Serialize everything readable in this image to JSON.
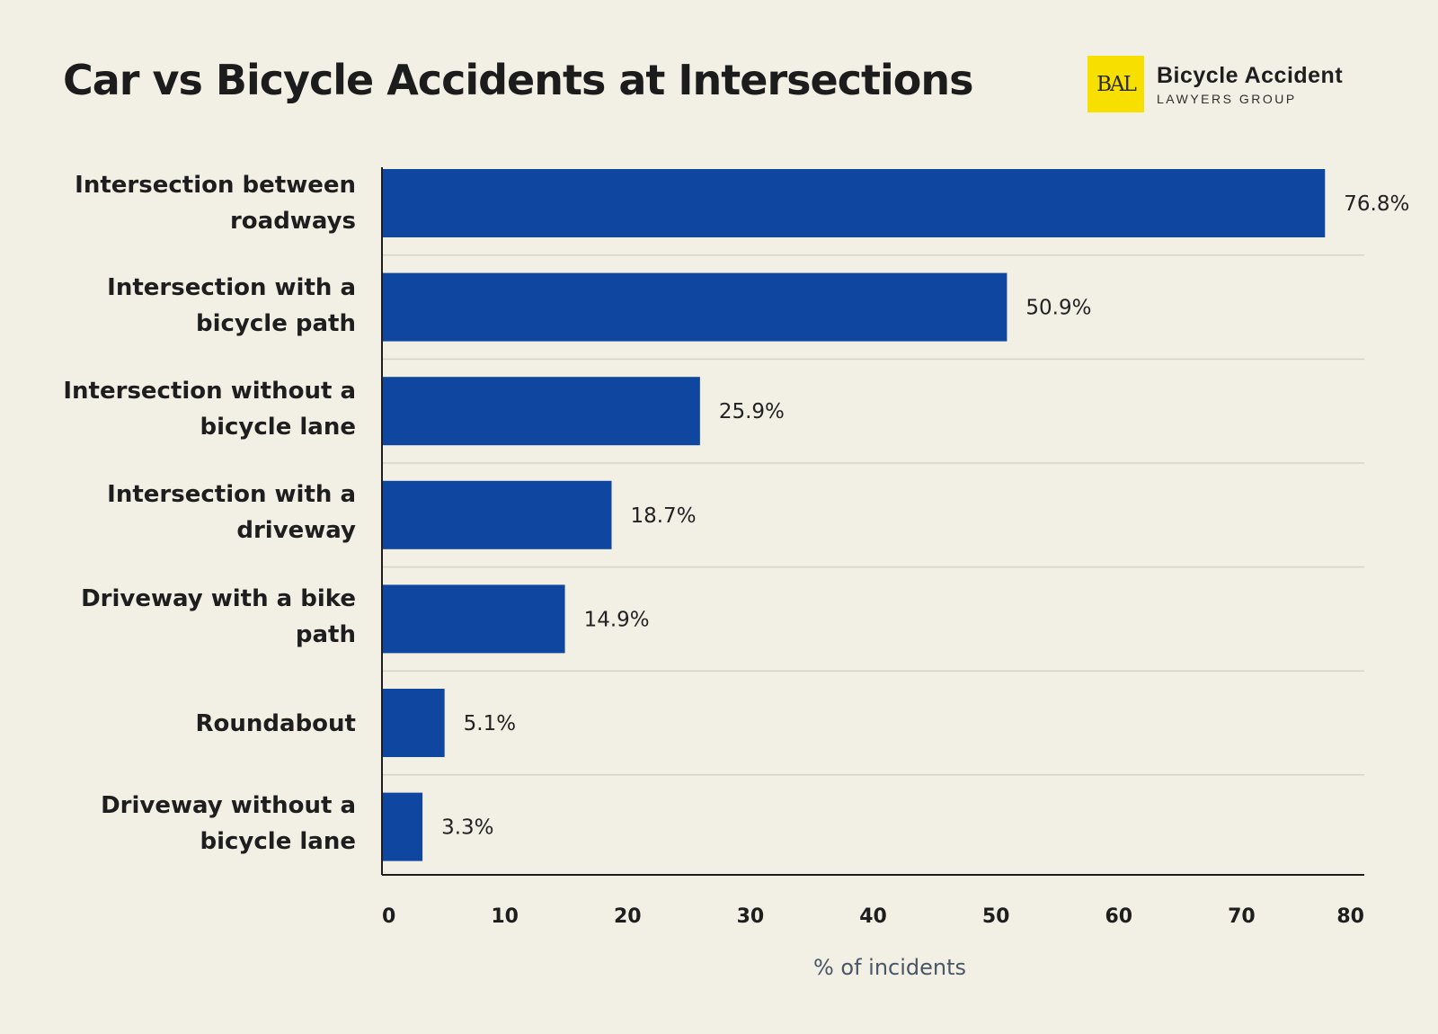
{
  "brand": {
    "mark": "BAL",
    "name_line1": "Bicycle Accident",
    "name_line2": "LAWYERS GROUP",
    "accent_color": "#f7df00"
  },
  "chart_data": {
    "type": "bar",
    "orientation": "horizontal",
    "title": "Car vs Bicycle Accidents at Intersections",
    "xlabel": "% of incidents",
    "ylabel": "",
    "xlim": [
      0,
      80
    ],
    "xticks": [
      "0",
      "10",
      "20",
      "30",
      "40",
      "50",
      "60",
      "70",
      "80"
    ],
    "grid": "horizontal separators",
    "bar_color": "#0e46a0",
    "categories": [
      "Intersection between roadways",
      "Intersection with a bicycle path",
      "Intersection without a bicycle lane",
      "Intersection with a driveway",
      "Driveway with a bike path",
      "Roundabout",
      "Driveway without a bicycle lane"
    ],
    "values": [
      76.8,
      50.9,
      25.9,
      18.7,
      14.9,
      5.1,
      3.3
    ],
    "value_labels": [
      "76.8%",
      "50.9%",
      "25.9%",
      "18.7%",
      "14.9%",
      "5.1%",
      "3.3%"
    ]
  }
}
